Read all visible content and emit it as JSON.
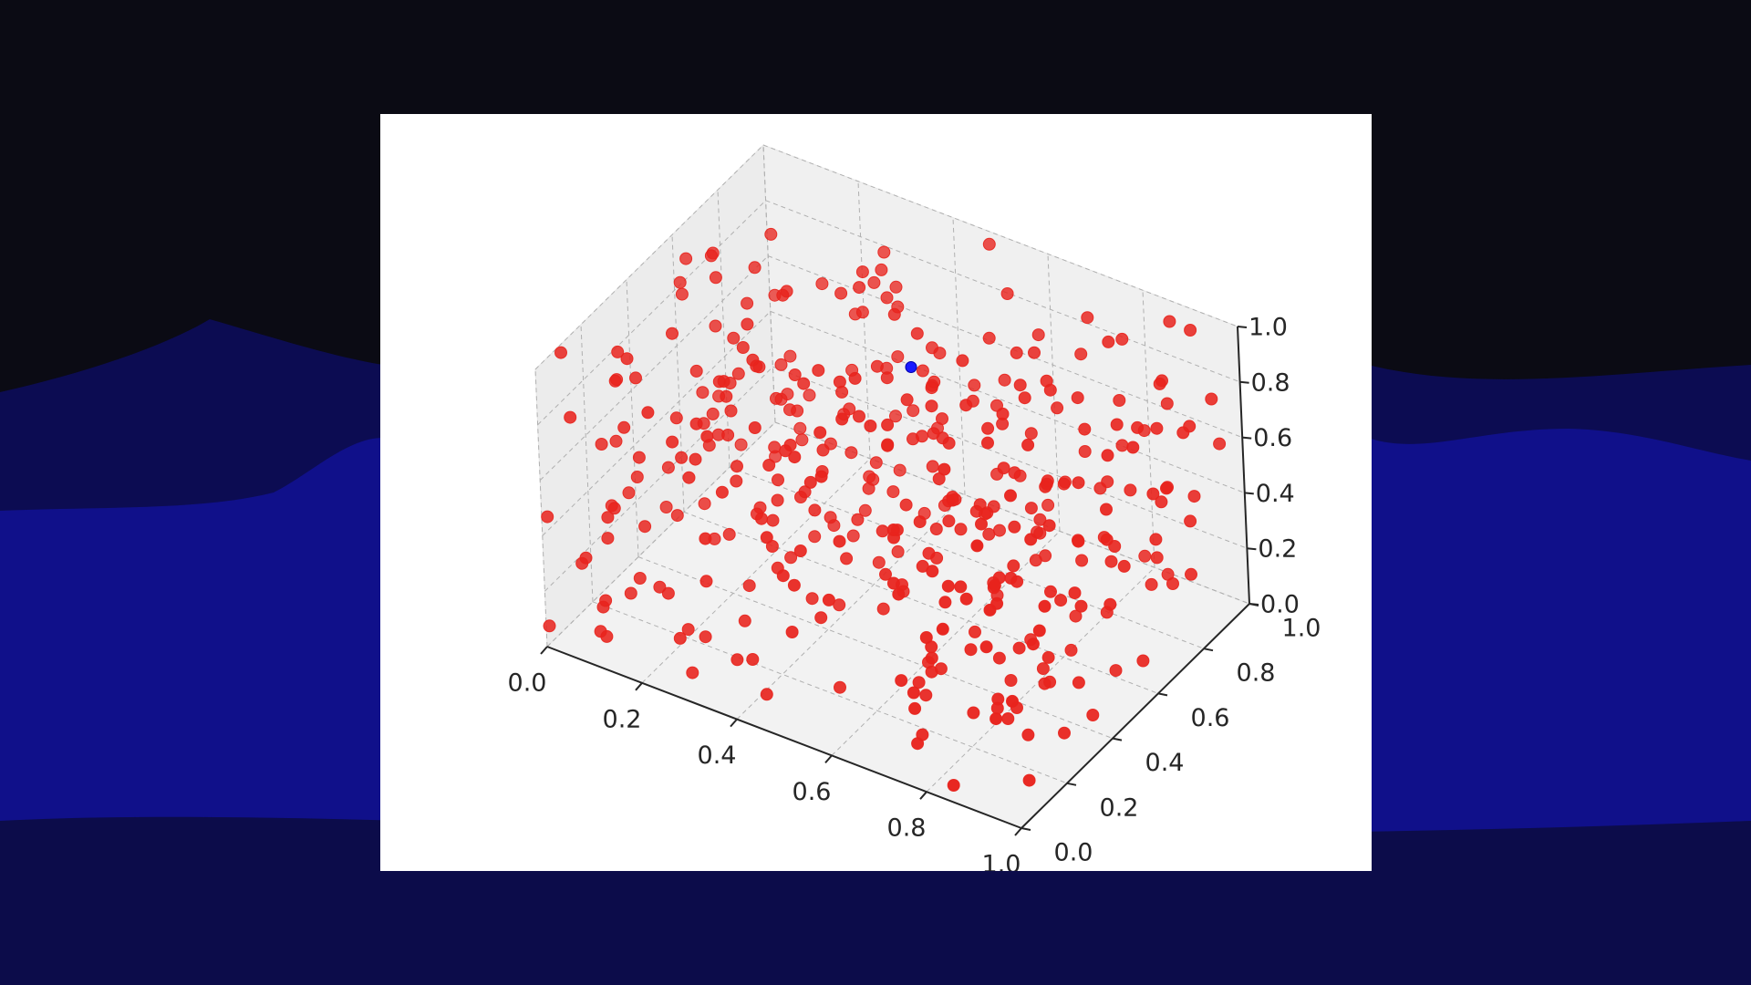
{
  "theme": {
    "page_background": "#0b0b14",
    "wave_color": "#10108a",
    "figure_background": "#ffffff",
    "point_color": "#e8231d",
    "highlight_color": "#1a1aff"
  },
  "chart_data": {
    "type": "scatter",
    "dimensions": 3,
    "title": "",
    "xlabel": "",
    "ylabel": "",
    "zlabel": "",
    "xlim": [
      0,
      1
    ],
    "ylim": [
      0,
      1
    ],
    "zlim": [
      0,
      1
    ],
    "grid": true,
    "legend": "none",
    "xticks": [
      "0.0",
      "0.2",
      "0.4",
      "0.6",
      "0.8",
      "1.0"
    ],
    "yticks": [
      "0.0",
      "0.2",
      "0.4",
      "0.6",
      "0.8",
      "1.0"
    ],
    "zticks": [
      "0.0",
      "0.2",
      "0.4",
      "0.6",
      "0.8",
      "1.0"
    ],
    "series": [
      {
        "color": "#e8231d",
        "point_count": 400,
        "distribution": "uniform random in unit cube",
        "sample_points": [
          [
            0.12,
            0.35,
            0.62
          ],
          [
            0.47,
            0.81,
            0.18
          ],
          [
            0.93,
            0.22,
            0.44
          ],
          [
            0.05,
            0.67,
            0.91
          ],
          [
            0.71,
            0.09,
            0.27
          ],
          [
            0.38,
            0.54,
            0.73
          ],
          [
            0.84,
            0.46,
            0.05
          ],
          [
            0.21,
            0.92,
            0.39
          ],
          [
            0.59,
            0.31,
            0.86
          ],
          [
            0.66,
            0.78,
            0.57
          ],
          [
            0.02,
            0.14,
            0.22
          ],
          [
            0.88,
            0.95,
            0.98
          ]
        ]
      },
      {
        "color": "#1a1aff",
        "point_count": 1,
        "highlight": true,
        "points": [
          [
            0.5,
            0.6,
            0.85
          ]
        ]
      }
    ]
  }
}
